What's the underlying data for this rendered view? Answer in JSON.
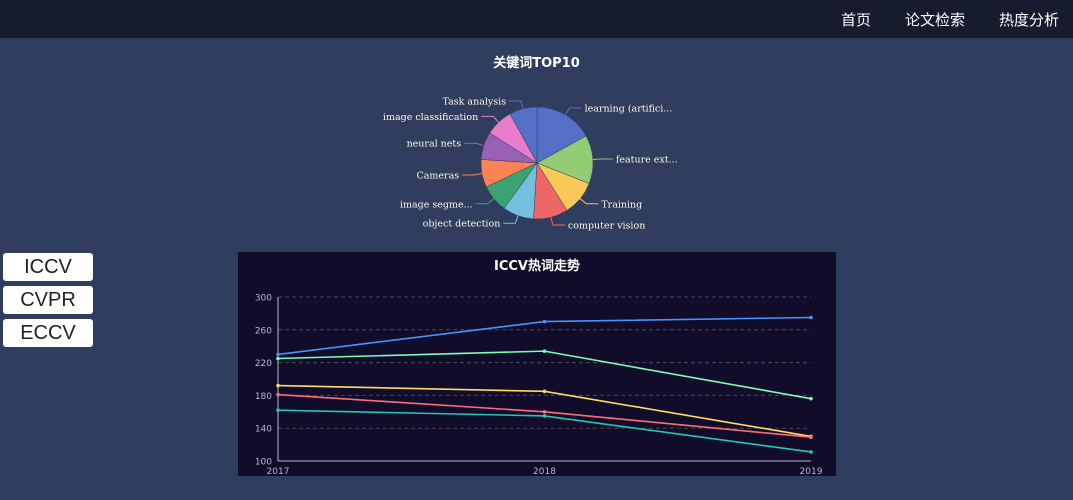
{
  "nav": {
    "items": [
      "首页",
      "论文检索",
      "热度分析"
    ]
  },
  "sidebar": {
    "buttons": [
      "ICCV",
      "CVPR",
      "ECCV"
    ]
  },
  "chart_data": [
    {
      "type": "pie",
      "title": "关键词TOP10",
      "slices": [
        {
          "label": "learning (artifici...",
          "value": 17,
          "color": "#5470c6"
        },
        {
          "label": "feature ext...",
          "value": 14,
          "color": "#91cc75"
        },
        {
          "label": "Training",
          "value": 10,
          "color": "#fac858"
        },
        {
          "label": "computer vision",
          "value": 10,
          "color": "#ee6666"
        },
        {
          "label": "object detection",
          "value": 9,
          "color": "#73c0de"
        },
        {
          "label": "image segme...",
          "value": 8,
          "color": "#3ba272"
        },
        {
          "label": "Cameras",
          "value": 8,
          "color": "#fc8452"
        },
        {
          "label": "neural nets",
          "value": 8,
          "color": "#9a60b4"
        },
        {
          "label": "image classification",
          "value": 8,
          "color": "#ea7ccc"
        },
        {
          "label": "Task analysis",
          "value": 8,
          "color": "#5470c6"
        }
      ]
    },
    {
      "type": "line",
      "title": "ICCV热词走势",
      "x": [
        "2017",
        "2018",
        "2019"
      ],
      "ylim": [
        100,
        300
      ],
      "yticks": [
        100,
        140,
        180,
        220,
        260,
        300
      ],
      "grid": true,
      "series": [
        {
          "values": [
            230,
            270,
            275
          ],
          "color": "#4992ff"
        },
        {
          "values": [
            225,
            234,
            176
          ],
          "color": "#7cffb2"
        },
        {
          "values": [
            192,
            185,
            130
          ],
          "color": "#fddd60"
        },
        {
          "values": [
            181,
            160,
            129
          ],
          "color": "#ff6e76"
        },
        {
          "values": [
            162,
            155,
            111
          ],
          "color": "#26c6b4"
        }
      ]
    }
  ]
}
